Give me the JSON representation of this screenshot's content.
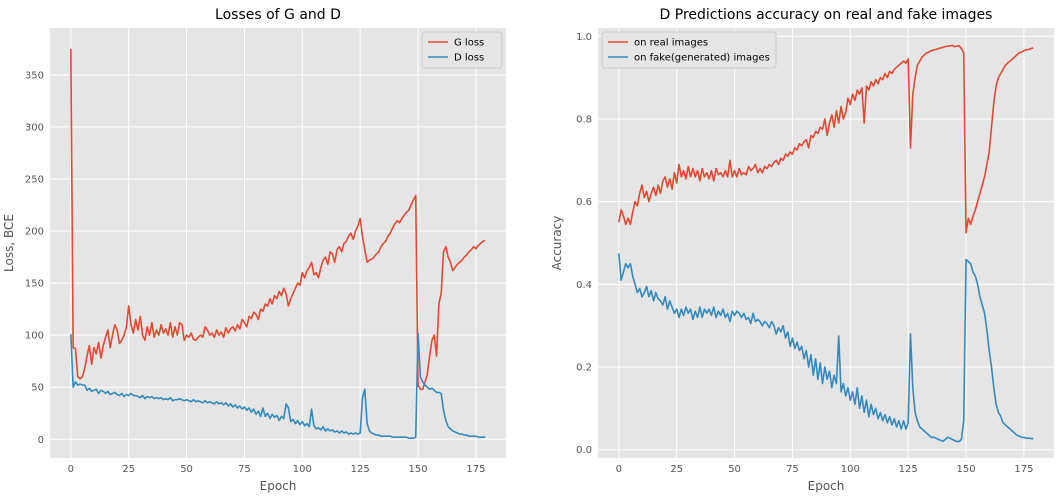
{
  "chart_data": [
    {
      "type": "line",
      "title": "Losses of G and D",
      "xlabel": "Epoch",
      "ylabel": "Loss, BCE",
      "xlim": [
        -9,
        188
      ],
      "ylim": [
        -18,
        395
      ],
      "xticks": [
        0,
        25,
        50,
        75,
        100,
        125,
        150,
        175
      ],
      "yticks": [
        0,
        50,
        100,
        150,
        200,
        250,
        300,
        350
      ],
      "grid": true,
      "legend_position": "top-right",
      "x": [
        0,
        1,
        2,
        3,
        4,
        5,
        6,
        7,
        8,
        9,
        10,
        11,
        12,
        13,
        14,
        15,
        16,
        17,
        18,
        19,
        20,
        21,
        22,
        23,
        24,
        25,
        26,
        27,
        28,
        29,
        30,
        31,
        32,
        33,
        34,
        35,
        36,
        37,
        38,
        39,
        40,
        41,
        42,
        43,
        44,
        45,
        46,
        47,
        48,
        49,
        50,
        51,
        52,
        53,
        54,
        55,
        56,
        57,
        58,
        59,
        60,
        61,
        62,
        63,
        64,
        65,
        66,
        67,
        68,
        69,
        70,
        71,
        72,
        73,
        74,
        75,
        76,
        77,
        78,
        79,
        80,
        81,
        82,
        83,
        84,
        85,
        86,
        87,
        88,
        89,
        90,
        91,
        92,
        93,
        94,
        95,
        96,
        97,
        98,
        99,
        100,
        101,
        102,
        103,
        104,
        105,
        106,
        107,
        108,
        109,
        110,
        111,
        112,
        113,
        114,
        115,
        116,
        117,
        118,
        119,
        120,
        121,
        122,
        123,
        124,
        125,
        126,
        127,
        128,
        129,
        130,
        131,
        132,
        133,
        134,
        135,
        136,
        137,
        138,
        139,
        140,
        141,
        142,
        143,
        144,
        145,
        146,
        147,
        148,
        149,
        150,
        151,
        152,
        153,
        154,
        155,
        156,
        157,
        158,
        159,
        160,
        161,
        162,
        163,
        164,
        165,
        166,
        167,
        168,
        169,
        170,
        171,
        172,
        173,
        174,
        175,
        176,
        177,
        178,
        179
      ],
      "series": [
        {
          "name": "G loss",
          "color": "#e24a33",
          "values": [
            375,
            88,
            87,
            60,
            58,
            60,
            68,
            80,
            90,
            72,
            88,
            82,
            93,
            78,
            90,
            98,
            105,
            88,
            100,
            110,
            105,
            92,
            95,
            100,
            108,
            128,
            110,
            102,
            115,
            105,
            118,
            100,
            95,
            108,
            100,
            112,
            98,
            105,
            100,
            110,
            102,
            106,
            100,
            112,
            98,
            108,
            100,
            112,
            110,
            95,
            100,
            98,
            102,
            96,
            95,
            98,
            100,
            98,
            108,
            105,
            100,
            102,
            98,
            105,
            100,
            103,
            98,
            107,
            102,
            106,
            108,
            104,
            110,
            106,
            115,
            112,
            108,
            118,
            116,
            122,
            120,
            115,
            125,
            123,
            130,
            128,
            135,
            130,
            138,
            135,
            142,
            138,
            145,
            140,
            128,
            135,
            140,
            145,
            150,
            148,
            160,
            155,
            162,
            165,
            170,
            158,
            160,
            155,
            165,
            172,
            175,
            168,
            180,
            178,
            170,
            182,
            185,
            180,
            188,
            190,
            195,
            198,
            192,
            200,
            205,
            212,
            195,
            182,
            170,
            172,
            173,
            175,
            178,
            180,
            185,
            188,
            190,
            195,
            198,
            203,
            207,
            210,
            208,
            212,
            215,
            218,
            220,
            225,
            230,
            234,
            52,
            48,
            48,
            55,
            62,
            80,
            95,
            100,
            80,
            130,
            140,
            180,
            185,
            175,
            170,
            162,
            165,
            168,
            170,
            172,
            175,
            177,
            180,
            182,
            185,
            183,
            186,
            188,
            190,
            191
          ]
        },
        {
          "name": "D loss",
          "color": "#348abd",
          "values": [
            101,
            50,
            55,
            52,
            53,
            52,
            52,
            47,
            49,
            46,
            47,
            48,
            44,
            47,
            46,
            44,
            46,
            43,
            44,
            45,
            43,
            42,
            44,
            41,
            43,
            42,
            44,
            42,
            42,
            41,
            40,
            42,
            39,
            41,
            40,
            41,
            39,
            40,
            39,
            40,
            38,
            39,
            38,
            40,
            37,
            38,
            38,
            39,
            38,
            37,
            38,
            37,
            36,
            38,
            36,
            37,
            36,
            35,
            37,
            35,
            36,
            35,
            34,
            36,
            34,
            35,
            33,
            35,
            32,
            34,
            31,
            33,
            30,
            32,
            29,
            31,
            28,
            30,
            26,
            29,
            24,
            27,
            22,
            30,
            22,
            25,
            20,
            24,
            21,
            23,
            18,
            22,
            20,
            34,
            30,
            17,
            19,
            15,
            18,
            14,
            17,
            13,
            15,
            12,
            29,
            13,
            10,
            11,
            9,
            12,
            8,
            10,
            8,
            9,
            7,
            8,
            6,
            8,
            6,
            7,
            5,
            6,
            5,
            6,
            5,
            6,
            40,
            48,
            15,
            8,
            6,
            5,
            4,
            4,
            3,
            3,
            3,
            3,
            3,
            2,
            2,
            2,
            2,
            2,
            2,
            2,
            1,
            1,
            1,
            2,
            102,
            60,
            55,
            52,
            50,
            48,
            49,
            47,
            45,
            45,
            44,
            28,
            18,
            12,
            10,
            8,
            7,
            6,
            5,
            5,
            4,
            4,
            3,
            3,
            3,
            3,
            2,
            2,
            2,
            2
          ]
        }
      ]
    },
    {
      "type": "line",
      "title": "D Predictions accuracy on real and fake images",
      "xlabel": "Epoch",
      "ylabel": "Accuracy",
      "xlim": [
        -9,
        188
      ],
      "ylim": [
        -0.02,
        1.02
      ],
      "xticks": [
        0,
        25,
        50,
        75,
        100,
        125,
        150,
        175
      ],
      "yticks": [
        0.0,
        0.2,
        0.4,
        0.6,
        0.8,
        1.0
      ],
      "ytick_labels": [
        "0.0",
        "0.2",
        "0.4",
        "0.6",
        "0.8",
        "1.0"
      ],
      "grid": true,
      "legend_position": "top-left",
      "x": [
        0,
        1,
        2,
        3,
        4,
        5,
        6,
        7,
        8,
        9,
        10,
        11,
        12,
        13,
        14,
        15,
        16,
        17,
        18,
        19,
        20,
        21,
        22,
        23,
        24,
        25,
        26,
        27,
        28,
        29,
        30,
        31,
        32,
        33,
        34,
        35,
        36,
        37,
        38,
        39,
        40,
        41,
        42,
        43,
        44,
        45,
        46,
        47,
        48,
        49,
        50,
        51,
        52,
        53,
        54,
        55,
        56,
        57,
        58,
        59,
        60,
        61,
        62,
        63,
        64,
        65,
        66,
        67,
        68,
        69,
        70,
        71,
        72,
        73,
        74,
        75,
        76,
        77,
        78,
        79,
        80,
        81,
        82,
        83,
        84,
        85,
        86,
        87,
        88,
        89,
        90,
        91,
        92,
        93,
        94,
        95,
        96,
        97,
        98,
        99,
        100,
        101,
        102,
        103,
        104,
        105,
        106,
        107,
        108,
        109,
        110,
        111,
        112,
        113,
        114,
        115,
        116,
        117,
        118,
        119,
        120,
        121,
        122,
        123,
        124,
        125,
        126,
        127,
        128,
        129,
        130,
        131,
        132,
        133,
        134,
        135,
        136,
        137,
        138,
        139,
        140,
        141,
        142,
        143,
        144,
        145,
        146,
        147,
        148,
        149,
        150,
        151,
        152,
        153,
        154,
        155,
        156,
        157,
        158,
        159,
        160,
        161,
        162,
        163,
        164,
        165,
        166,
        167,
        168,
        169,
        170,
        171,
        172,
        173,
        174,
        175,
        176,
        177,
        178,
        179
      ],
      "series": [
        {
          "name": "on real images",
          "color": "#e24a33",
          "values": [
            0.55,
            0.58,
            0.565,
            0.545,
            0.56,
            0.545,
            0.575,
            0.6,
            0.59,
            0.62,
            0.64,
            0.61,
            0.625,
            0.6,
            0.62,
            0.635,
            0.615,
            0.64,
            0.62,
            0.65,
            0.66,
            0.635,
            0.655,
            0.63,
            0.67,
            0.645,
            0.69,
            0.66,
            0.675,
            0.655,
            0.685,
            0.66,
            0.68,
            0.66,
            0.675,
            0.65,
            0.68,
            0.66,
            0.67,
            0.655,
            0.675,
            0.65,
            0.68,
            0.665,
            0.67,
            0.66,
            0.675,
            0.66,
            0.7,
            0.66,
            0.675,
            0.66,
            0.68,
            0.665,
            0.67,
            0.665,
            0.685,
            0.675,
            0.68,
            0.69,
            0.67,
            0.68,
            0.67,
            0.685,
            0.68,
            0.69,
            0.685,
            0.695,
            0.7,
            0.69,
            0.705,
            0.7,
            0.715,
            0.71,
            0.72,
            0.715,
            0.73,
            0.725,
            0.74,
            0.735,
            0.745,
            0.75,
            0.73,
            0.76,
            0.755,
            0.77,
            0.765,
            0.78,
            0.775,
            0.8,
            0.76,
            0.79,
            0.81,
            0.78,
            0.82,
            0.79,
            0.83,
            0.8,
            0.815,
            0.85,
            0.835,
            0.86,
            0.845,
            0.87,
            0.86,
            0.875,
            0.79,
            0.88,
            0.87,
            0.89,
            0.88,
            0.895,
            0.885,
            0.9,
            0.895,
            0.91,
            0.9,
            0.915,
            0.91,
            0.92,
            0.925,
            0.93,
            0.935,
            0.94,
            0.935,
            0.945,
            0.73,
            0.86,
            0.9,
            0.93,
            0.94,
            0.95,
            0.955,
            0.96,
            0.962,
            0.965,
            0.967,
            0.968,
            0.97,
            0.972,
            0.973,
            0.975,
            0.976,
            0.977,
            0.978,
            0.975,
            0.976,
            0.977,
            0.97,
            0.96,
            0.525,
            0.56,
            0.545,
            0.565,
            0.58,
            0.6,
            0.62,
            0.64,
            0.66,
            0.69,
            0.72,
            0.78,
            0.84,
            0.88,
            0.9,
            0.91,
            0.92,
            0.93,
            0.935,
            0.94,
            0.945,
            0.95,
            0.955,
            0.96,
            0.962,
            0.965,
            0.967,
            0.968,
            0.97,
            0.972
          ]
        },
        {
          "name": "on fake(generated) images",
          "color": "#348abd",
          "values": [
            0.475,
            0.41,
            0.43,
            0.45,
            0.44,
            0.45,
            0.42,
            0.4,
            0.38,
            0.39,
            0.37,
            0.38,
            0.395,
            0.37,
            0.385,
            0.36,
            0.38,
            0.365,
            0.36,
            0.35,
            0.37,
            0.34,
            0.36,
            0.345,
            0.33,
            0.34,
            0.32,
            0.34,
            0.325,
            0.345,
            0.33,
            0.34,
            0.315,
            0.335,
            0.32,
            0.345,
            0.32,
            0.34,
            0.33,
            0.34,
            0.325,
            0.345,
            0.32,
            0.335,
            0.325,
            0.34,
            0.32,
            0.33,
            0.31,
            0.335,
            0.325,
            0.335,
            0.33,
            0.32,
            0.33,
            0.315,
            0.32,
            0.305,
            0.33,
            0.31,
            0.315,
            0.31,
            0.3,
            0.31,
            0.305,
            0.295,
            0.31,
            0.3,
            0.28,
            0.295,
            0.285,
            0.3,
            0.27,
            0.285,
            0.25,
            0.27,
            0.245,
            0.26,
            0.24,
            0.25,
            0.22,
            0.24,
            0.2,
            0.23,
            0.18,
            0.22,
            0.17,
            0.21,
            0.16,
            0.2,
            0.17,
            0.19,
            0.15,
            0.18,
            0.16,
            0.275,
            0.14,
            0.16,
            0.13,
            0.15,
            0.12,
            0.14,
            0.11,
            0.15,
            0.1,
            0.13,
            0.09,
            0.12,
            0.08,
            0.11,
            0.085,
            0.1,
            0.075,
            0.09,
            0.07,
            0.085,
            0.065,
            0.08,
            0.06,
            0.075,
            0.055,
            0.07,
            0.05,
            0.07,
            0.05,
            0.065,
            0.28,
            0.15,
            0.09,
            0.07,
            0.055,
            0.05,
            0.045,
            0.04,
            0.035,
            0.03,
            0.03,
            0.028,
            0.025,
            0.023,
            0.02,
            0.025,
            0.03,
            0.028,
            0.025,
            0.022,
            0.02,
            0.02,
            0.025,
            0.07,
            0.46,
            0.455,
            0.45,
            0.43,
            0.42,
            0.4,
            0.37,
            0.35,
            0.33,
            0.29,
            0.24,
            0.2,
            0.15,
            0.11,
            0.09,
            0.08,
            0.065,
            0.06,
            0.055,
            0.05,
            0.045,
            0.04,
            0.035,
            0.033,
            0.03,
            0.03,
            0.028,
            0.028,
            0.027,
            0.027
          ]
        }
      ]
    }
  ]
}
